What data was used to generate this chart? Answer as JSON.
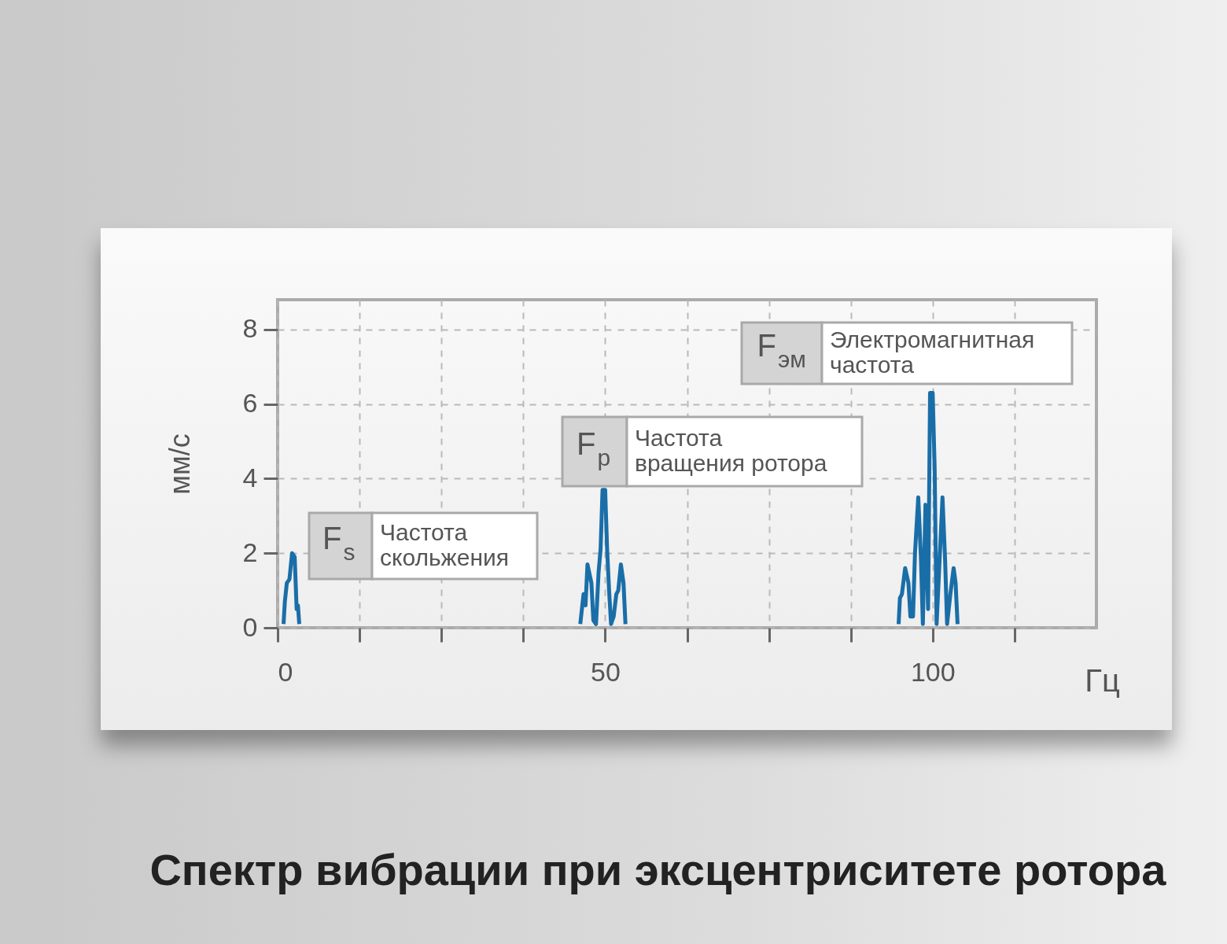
{
  "chart_data": {
    "type": "line",
    "title": "Спектр вибрации при эксцентриситете ротора",
    "xlabel": "Гц",
    "ylabel": "мм/с",
    "xlim": [
      0,
      125
    ],
    "ylim": [
      0,
      8.8
    ],
    "xticks": [
      0,
      {
        "value": 12.5,
        "label": null
      },
      {
        "value": 25,
        "label": null
      },
      {
        "value": 37.5,
        "label": null
      },
      50,
      {
        "value": 62.5,
        "label": null
      },
      {
        "value": 75,
        "label": null
      },
      {
        "value": 87.5,
        "label": null
      },
      100,
      {
        "value": 112.5,
        "label": null
      }
    ],
    "yticks": [
      0,
      2,
      4,
      6,
      8
    ],
    "grid": true,
    "line_style": "solid",
    "x": [
      0.9,
      1.1,
      1.4,
      1.8,
      2.2,
      2.6,
      2.9,
      3.1,
      3.3,
      25,
      46.2,
      46.7,
      47.0,
      47.3,
      47.9,
      48.2,
      48.6,
      49.0,
      49.3,
      49.6,
      50.0,
      50.3,
      50.6,
      50.9,
      51.3,
      51.7,
      52.0,
      52.4,
      52.8,
      53.1,
      75,
      94.8,
      95.0,
      95.3,
      95.8,
      96.3,
      96.6,
      97.0,
      97.3,
      97.8,
      98.2,
      98.5,
      98.9,
      99.3,
      99.6,
      100.0,
      100.3,
      100.6,
      101.0,
      101.5,
      101.9,
      102.2,
      102.7,
      103.2,
      103.5,
      103.8
    ],
    "series": [
      {
        "color": "#1a6ea8",
        "values": [
          0.1,
          0.7,
          1.2,
          1.3,
          2.0,
          1.9,
          0.5,
          0.6,
          0.1,
          null,
          0.1,
          0.9,
          0.6,
          1.7,
          1.2,
          0.2,
          0.1,
          1.5,
          2.1,
          3.7,
          3.7,
          2.1,
          1.0,
          0.1,
          0.3,
          0.9,
          1.0,
          1.7,
          1.2,
          0.1,
          null,
          0.1,
          0.8,
          0.9,
          1.6,
          1.2,
          0.3,
          0.3,
          2.0,
          3.5,
          1.9,
          0.1,
          3.3,
          0.5,
          6.3,
          6.3,
          4.3,
          0.1,
          1.6,
          3.5,
          1.8,
          0.1,
          0.9,
          1.6,
          1.2,
          0.1
        ]
      }
    ],
    "annotations": [
      "F$_{s}$",
      "Частота скольжения",
      "F$_{р}$",
      "Частота вращения ротора",
      "F$_{эм}$",
      "Электромагнитная частота"
    ]
  }
}
